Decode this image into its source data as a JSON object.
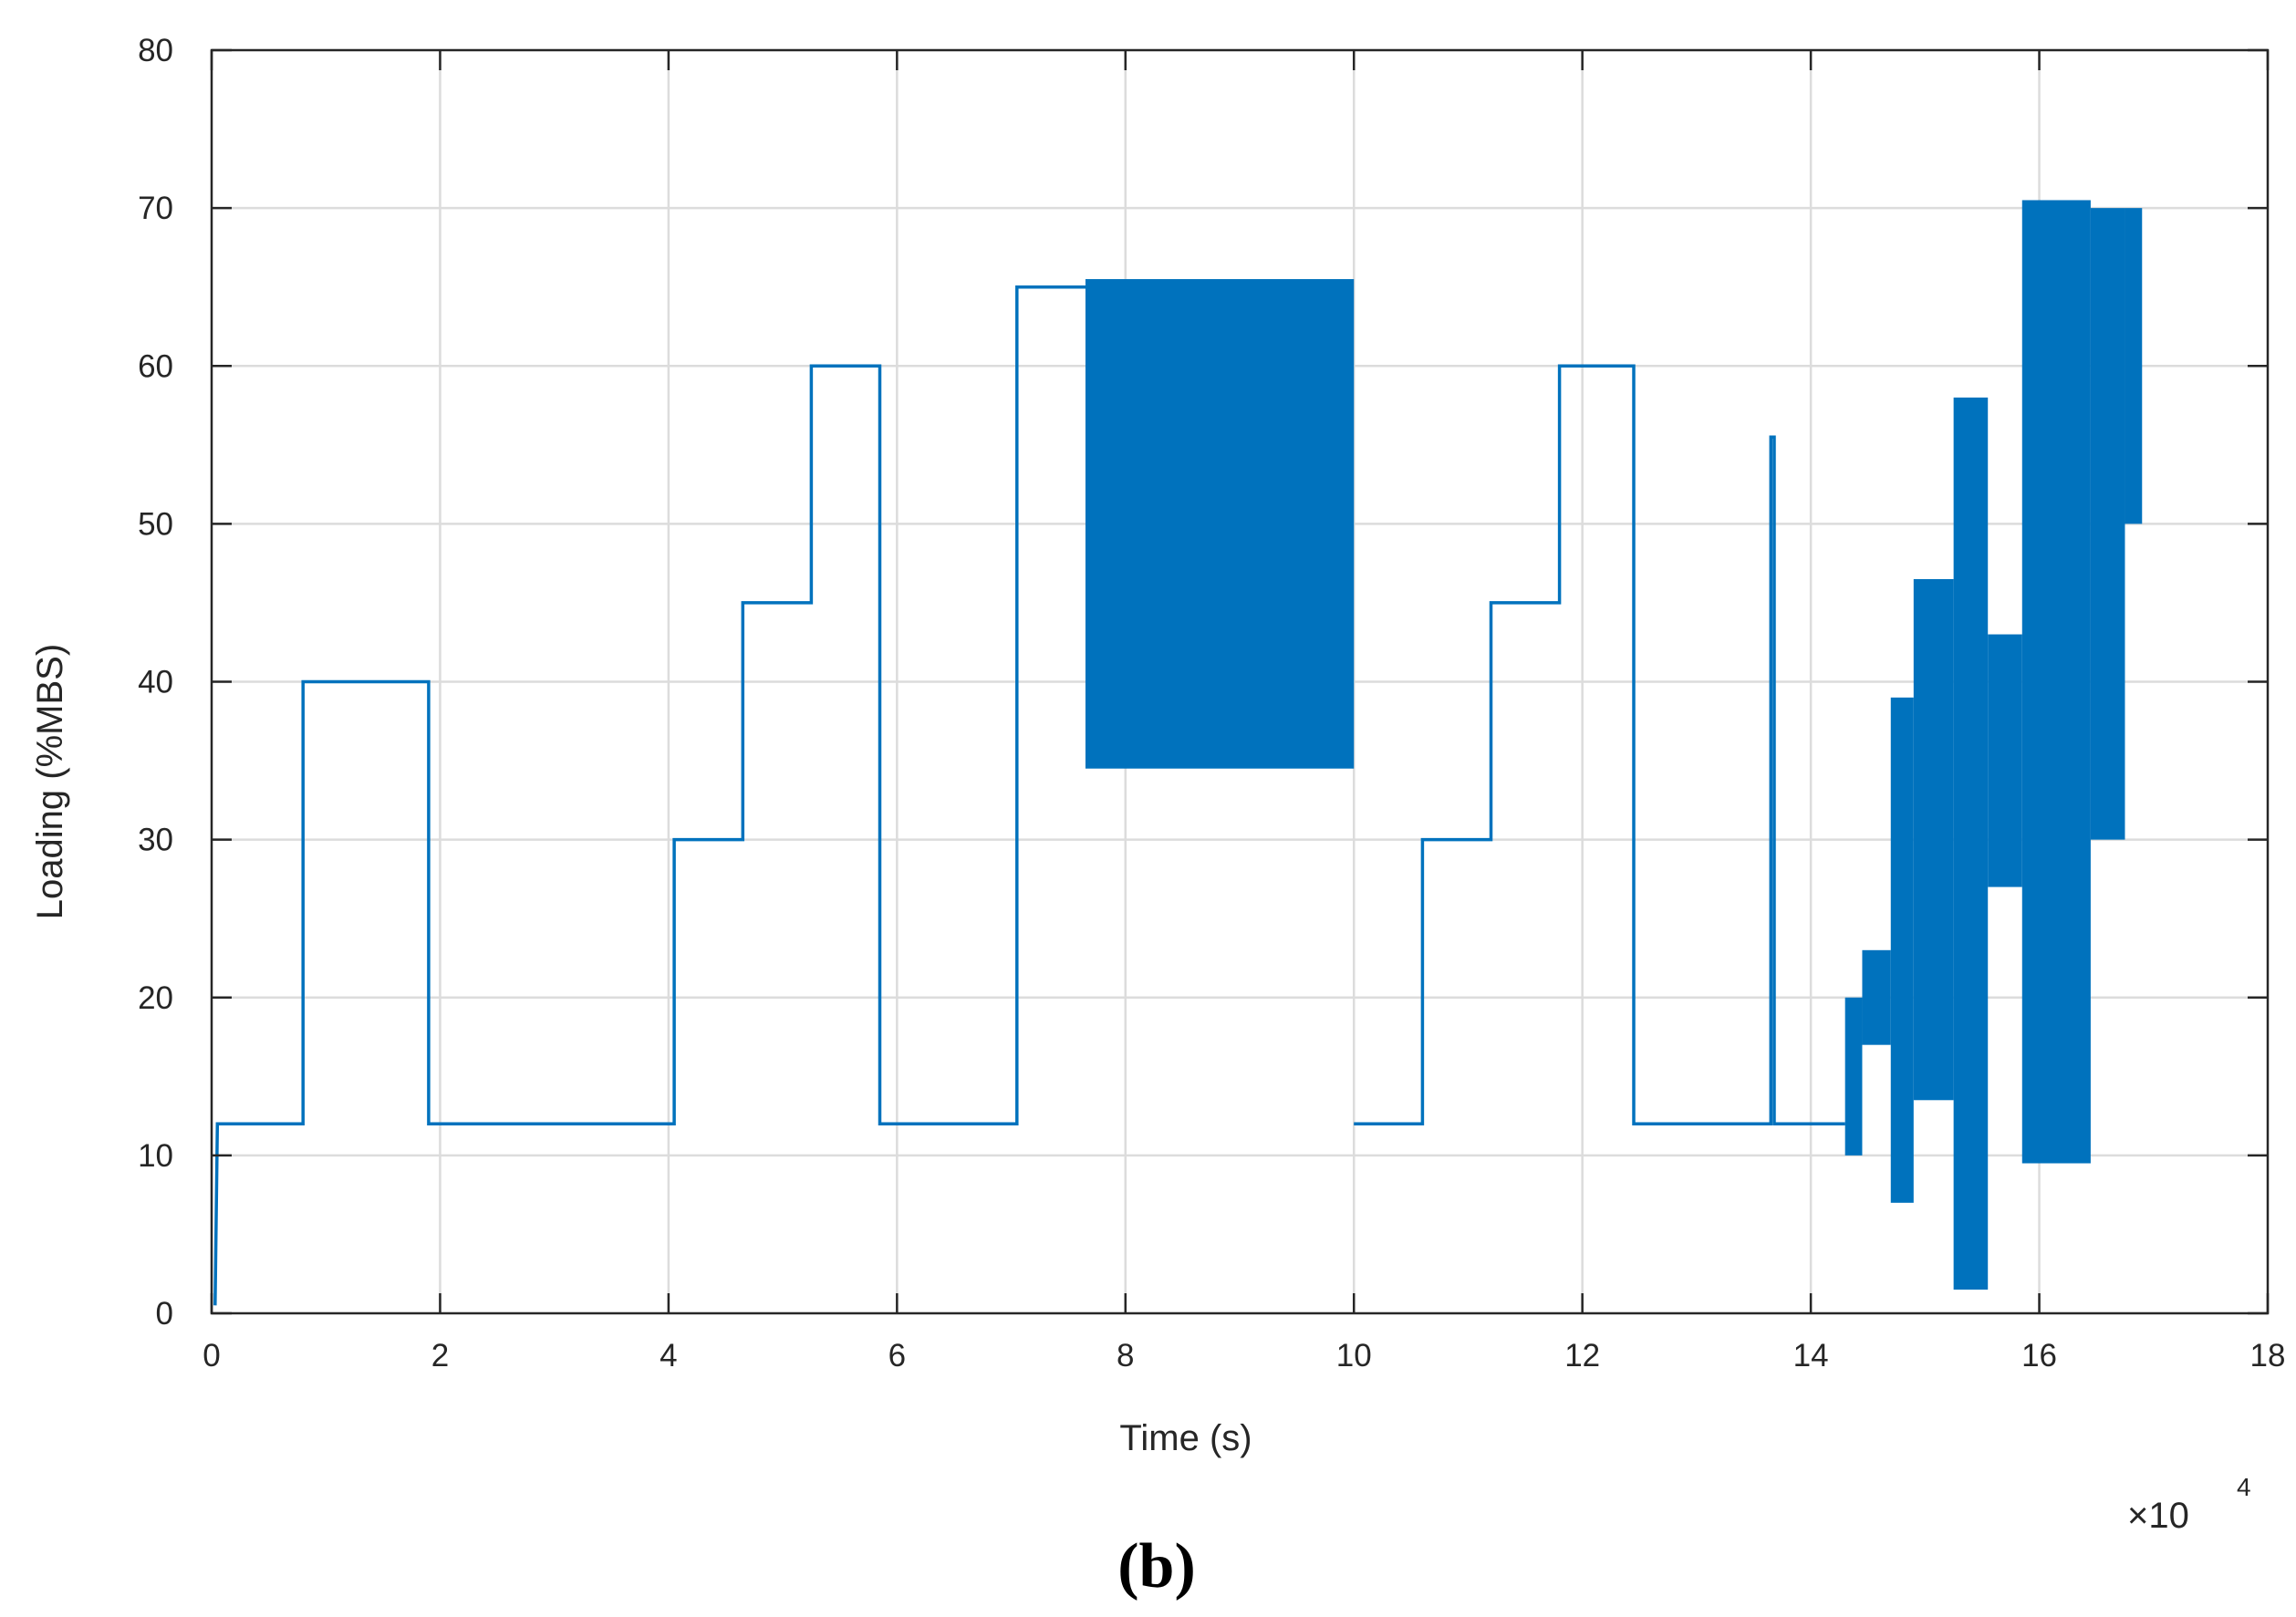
{
  "chart_data": {
    "type": "line",
    "title": "",
    "xlabel": "Time (s)",
    "ylabel": "Loading (%MBS)",
    "x_exponent_label": "×10",
    "x_exponent_power": "4",
    "xlim": [
      0,
      18
    ],
    "ylim": [
      0,
      80
    ],
    "x_ticks": [
      "0",
      "2",
      "4",
      "6",
      "8",
      "10",
      "12",
      "14",
      "16",
      "18"
    ],
    "y_ticks": [
      "0",
      "10",
      "20",
      "30",
      "40",
      "50",
      "60",
      "70",
      "80"
    ],
    "grid": true,
    "legend": "none",
    "color": "#0072BD",
    "series": [
      {
        "segments": [
          {
            "kind": "line",
            "points": [
              [
                0.03,
                0.5
              ],
              [
                0.05,
                12
              ],
              [
                0.8,
                12
              ],
              [
                0.8,
                40
              ],
              [
                1.9,
                40
              ],
              [
                1.9,
                12
              ],
              [
                4.05,
                12
              ],
              [
                4.05,
                30
              ],
              [
                4.65,
                30
              ],
              [
                4.65,
                45
              ],
              [
                5.25,
                45
              ],
              [
                5.25,
                60
              ],
              [
                5.85,
                60
              ],
              [
                5.85,
                12
              ],
              [
                7.05,
                12
              ],
              [
                7.05,
                65
              ],
              [
                7.65,
                65
              ]
            ]
          },
          {
            "kind": "band",
            "x0": 7.65,
            "x1": 10.0,
            "min": 34.5,
            "max": 65.5
          },
          {
            "kind": "line",
            "points": [
              [
                10.0,
                12
              ],
              [
                10.6,
                12
              ],
              [
                10.6,
                30
              ],
              [
                11.2,
                30
              ],
              [
                11.2,
                45
              ],
              [
                11.8,
                45
              ],
              [
                11.8,
                60
              ],
              [
                12.45,
                60
              ],
              [
                12.45,
                12
              ],
              [
                13.65,
                12
              ],
              [
                13.65,
                55.5
              ],
              [
                13.68,
                55.5
              ],
              [
                13.68,
                12
              ],
              [
                14.3,
                12
              ]
            ]
          },
          {
            "kind": "band",
            "x0": 14.3,
            "x1": 14.45,
            "min": 10,
            "max": 20
          },
          {
            "kind": "band",
            "x0": 14.45,
            "x1": 14.7,
            "min": 17,
            "max": 23
          },
          {
            "kind": "band",
            "x0": 14.7,
            "x1": 14.9,
            "min": 7,
            "max": 39
          },
          {
            "kind": "band",
            "x0": 14.9,
            "x1": 15.25,
            "min": 13.5,
            "max": 46.5
          },
          {
            "kind": "band",
            "x0": 15.25,
            "x1": 15.55,
            "min": 1.5,
            "max": 58
          },
          {
            "kind": "band",
            "x0": 15.55,
            "x1": 15.85,
            "min": 27,
            "max": 43
          },
          {
            "kind": "band",
            "x0": 15.85,
            "x1": 16.45,
            "min": 9.5,
            "max": 70.5
          },
          {
            "kind": "band",
            "x0": 16.45,
            "x1": 16.75,
            "min": 30,
            "max": 70
          },
          {
            "kind": "band",
            "x0": 16.75,
            "x1": 16.9,
            "min": 50,
            "max": 70
          }
        ]
      }
    ]
  },
  "caption": "(b)"
}
